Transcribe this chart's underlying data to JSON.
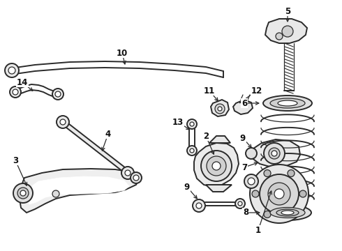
{
  "background_color": "#ffffff",
  "line_color": "#2a2a2a",
  "text_color": "#111111",
  "fig_width": 4.9,
  "fig_height": 3.6,
  "dpi": 100,
  "lw_thick": 1.4,
  "lw_thin": 0.9,
  "label_fontsize": 8.5
}
